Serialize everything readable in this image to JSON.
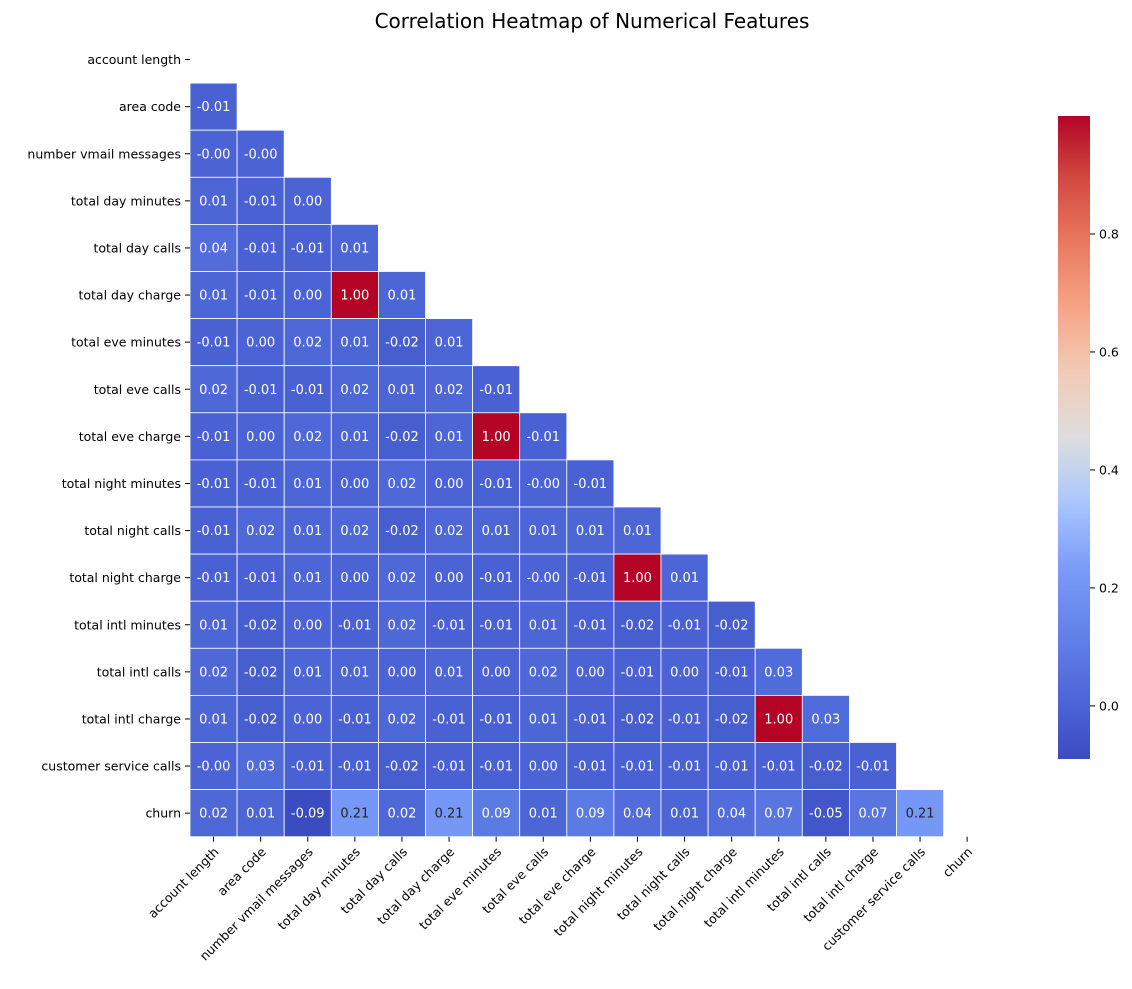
{
  "chart_data": {
    "type": "heatmap",
    "title": "Correlation Heatmap of Numerical Features",
    "colormap": "coolwarm",
    "mask": "upper-triangle-including-diagonal",
    "vmin": -0.09,
    "vmax": 1.0,
    "features": [
      "account length",
      "area code",
      "number vmail messages",
      "total day minutes",
      "total day calls",
      "total day charge",
      "total eve minutes",
      "total eve calls",
      "total eve charge",
      "total night minutes",
      "total night calls",
      "total night charge",
      "total intl minutes",
      "total intl calls",
      "total intl charge",
      "customer service calls",
      "churn"
    ],
    "rows": [
      [],
      [
        "-0.01"
      ],
      [
        "-0.00",
        "-0.00"
      ],
      [
        "0.01",
        "-0.01",
        "0.00"
      ],
      [
        "0.04",
        "-0.01",
        "-0.01",
        "0.01"
      ],
      [
        "0.01",
        "-0.01",
        "0.00",
        "1.00",
        "0.01"
      ],
      [
        "-0.01",
        "0.00",
        "0.02",
        "0.01",
        "-0.02",
        "0.01"
      ],
      [
        "0.02",
        "-0.01",
        "-0.01",
        "0.02",
        "0.01",
        "0.02",
        "-0.01"
      ],
      [
        "-0.01",
        "0.00",
        "0.02",
        "0.01",
        "-0.02",
        "0.01",
        "1.00",
        "-0.01"
      ],
      [
        "-0.01",
        "-0.01",
        "0.01",
        "0.00",
        "0.02",
        "0.00",
        "-0.01",
        "-0.00",
        "-0.01"
      ],
      [
        "-0.01",
        "0.02",
        "0.01",
        "0.02",
        "-0.02",
        "0.02",
        "0.01",
        "0.01",
        "0.01",
        "0.01"
      ],
      [
        "-0.01",
        "-0.01",
        "0.01",
        "0.00",
        "0.02",
        "0.00",
        "-0.01",
        "-0.00",
        "-0.01",
        "1.00",
        "0.01"
      ],
      [
        "0.01",
        "-0.02",
        "0.00",
        "-0.01",
        "0.02",
        "-0.01",
        "-0.01",
        "0.01",
        "-0.01",
        "-0.02",
        "-0.01",
        "-0.02"
      ],
      [
        "0.02",
        "-0.02",
        "0.01",
        "0.01",
        "0.00",
        "0.01",
        "0.00",
        "0.02",
        "0.00",
        "-0.01",
        "0.00",
        "-0.01",
        "0.03"
      ],
      [
        "0.01",
        "-0.02",
        "0.00",
        "-0.01",
        "0.02",
        "-0.01",
        "-0.01",
        "0.01",
        "-0.01",
        "-0.02",
        "-0.01",
        "-0.02",
        "1.00",
        "0.03"
      ],
      [
        "-0.00",
        "0.03",
        "-0.01",
        "-0.01",
        "-0.02",
        "-0.01",
        "-0.01",
        "0.00",
        "-0.01",
        "-0.01",
        "-0.01",
        "-0.01",
        "-0.01",
        "-0.02",
        "-0.01"
      ],
      [
        "0.02",
        "0.01",
        "-0.09",
        "0.21",
        "0.02",
        "0.21",
        "0.09",
        "0.01",
        "0.09",
        "0.04",
        "0.01",
        "0.04",
        "0.07",
        "-0.05",
        "0.07",
        "0.21"
      ]
    ],
    "colorbar": {
      "ticks": [
        "0.0",
        "0.2",
        "0.4",
        "0.6",
        "0.8"
      ],
      "tick_values": [
        0.0,
        0.2,
        0.4,
        0.6,
        0.8
      ]
    }
  }
}
